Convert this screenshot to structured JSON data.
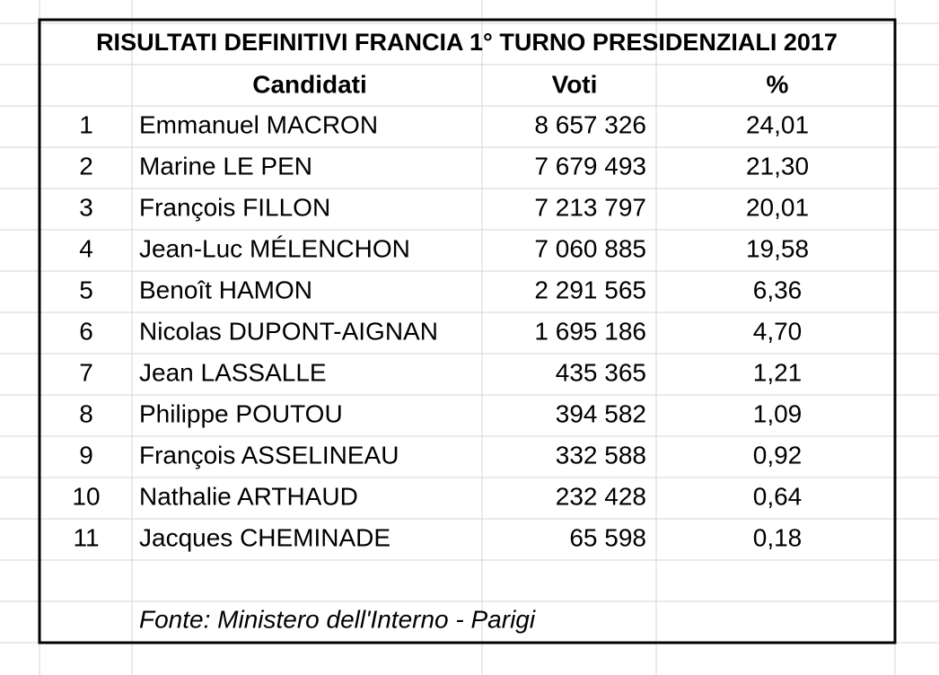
{
  "table": {
    "title": "RISULTATI DEFINITIVI FRANCIA 1° TURNO PRESIDENZIALI 2017",
    "headers": [
      "Candidati",
      "Voti",
      "%"
    ],
    "rows": [
      [
        "1",
        "Emmanuel MACRON",
        "8 657 326",
        "24,01"
      ],
      [
        "2",
        "Marine LE PEN",
        "7 679 493",
        "21,30"
      ],
      [
        "3",
        "François FILLON",
        "7 213 797",
        "20,01"
      ],
      [
        "4",
        "Jean-Luc MÉLENCHON",
        "7 060 885",
        "19,58"
      ],
      [
        "5",
        "Benoît HAMON",
        "2 291 565",
        "6,36"
      ],
      [
        "6",
        "Nicolas DUPONT-AIGNAN",
        "1 695 186",
        "4,70"
      ],
      [
        "7",
        "Jean LASSALLE",
        "435 365",
        "1,21"
      ],
      [
        "8",
        "Philippe POUTOU",
        "394 582",
        "1,09"
      ],
      [
        "9",
        "François ASSELINEAU",
        "332 588",
        "0,92"
      ],
      [
        "10",
        "Nathalie ARTHAUD",
        "232 428",
        "0,64"
      ],
      [
        "11",
        "Jacques CHEMINADE",
        "65 598",
        "0,18"
      ]
    ],
    "source": "Fonte: Ministero dell'Interno - Parigi"
  }
}
